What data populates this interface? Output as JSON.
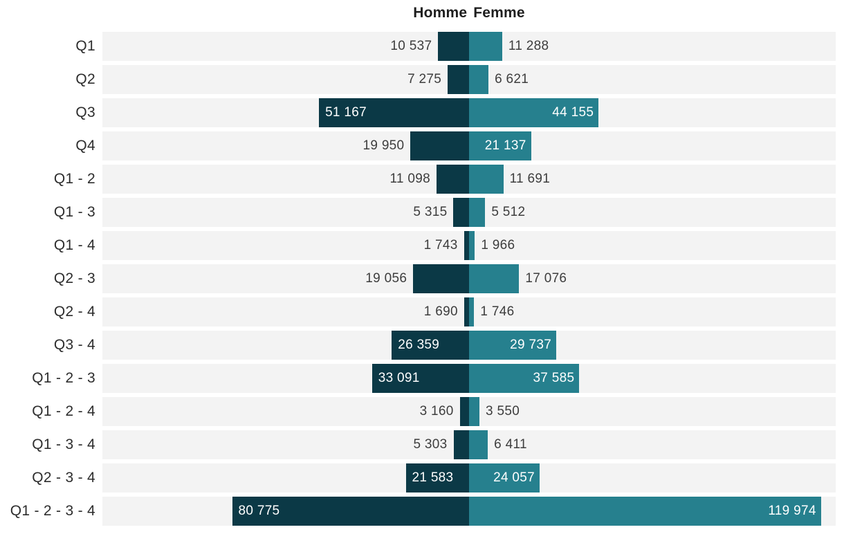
{
  "title": "Homme Femme",
  "colors": {
    "homme": "#0b3946",
    "femme": "#26808e",
    "track": "#f3f3f3",
    "background": "#ffffff",
    "outside_value_text": "#3d3d3d",
    "inside_value_text": "#ffffff",
    "category_text": "#2d2d2d",
    "title_text": "#1e1e1e"
  },
  "chart_data": {
    "type": "bar",
    "subtype": "diverging-horizontal-butterfly",
    "title": "Homme Femme",
    "legend": [
      "Homme",
      "Femme"
    ],
    "legend_position": "top-center",
    "gridlines": false,
    "axes": "hidden",
    "xmax_per_side": 125000,
    "inside_label_threshold": 20000,
    "categories": [
      "Q1",
      "Q2",
      "Q3",
      "Q4",
      "Q1 - 2",
      "Q1 - 3",
      "Q1 - 4",
      "Q2 - 3",
      "Q2 - 4",
      "Q3 - 4",
      "Q1 - 2 - 3",
      "Q1 - 2 - 4",
      "Q1 - 3 - 4",
      "Q2 - 3 - 4",
      "Q1 - 2 - 3 - 4"
    ],
    "series": [
      {
        "name": "Homme",
        "side": "left",
        "color": "#0b3946",
        "values": [
          10537,
          7275,
          51167,
          19950,
          11098,
          5315,
          1743,
          19056,
          1690,
          26359,
          33091,
          3160,
          5303,
          21583,
          80775
        ],
        "labels": [
          "10 537",
          "7 275",
          "51 167",
          "19 950",
          "11 098",
          "5 315",
          "1 743",
          "19 056",
          "1 690",
          "26 359",
          "33 091",
          "3 160",
          "5 303",
          "21 583",
          "80 775"
        ]
      },
      {
        "name": "Femme",
        "side": "right",
        "color": "#26808e",
        "values": [
          11288,
          6621,
          44155,
          21137,
          11691,
          5512,
          1966,
          17076,
          1746,
          29737,
          37585,
          3550,
          6411,
          24057,
          119974
        ],
        "labels": [
          "11 288",
          "6 621",
          "44 155",
          "21 137",
          "11 691",
          "5 512",
          "1 966",
          "17 076",
          "1 746",
          "29 737",
          "37 585",
          "3 550",
          "6 411",
          "24 057",
          "119 974"
        ]
      }
    ]
  }
}
